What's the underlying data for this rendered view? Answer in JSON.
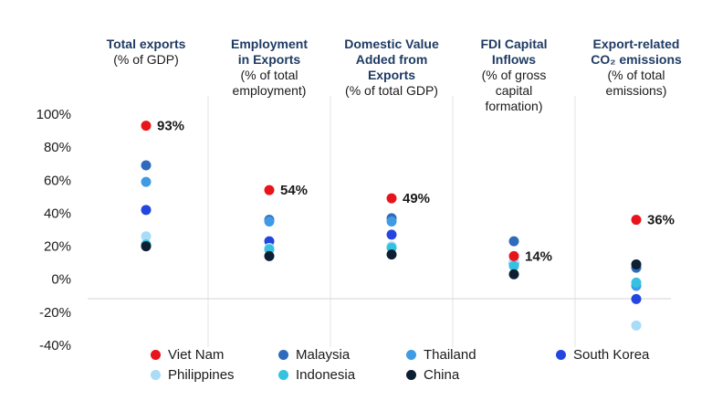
{
  "chart_data": {
    "type": "scatter",
    "categories": [
      {
        "title": "Total exports",
        "subtitle": "(% of GDP)"
      },
      {
        "title": "Employment in Exports",
        "subtitle": "(% of total employment)"
      },
      {
        "title": "Domestic Value Added from Exports",
        "subtitle": "(% of total GDP)"
      },
      {
        "title": "FDI Capital Inflows",
        "subtitle": "(% of gross capital formation)"
      },
      {
        "title": "Export-related CO₂ emissions",
        "subtitle": "(% of total emissions)"
      }
    ],
    "y_ticks": [
      "100%",
      "80%",
      "60%",
      "40%",
      "20%",
      "0%",
      "-20%",
      "-40%"
    ],
    "ylim": [
      -40,
      100
    ],
    "series": [
      {
        "name": "Viet Nam",
        "color": "#e8141b",
        "values": [
          93,
          54,
          49,
          14,
          36
        ],
        "labels": [
          "93%",
          "54%",
          "49%",
          "14%",
          "36%"
        ]
      },
      {
        "name": "Malaysia",
        "color": "#2f6bbd",
        "values": [
          69,
          36,
          37,
          23,
          7
        ]
      },
      {
        "name": "Thailand",
        "color": "#3f9be3",
        "values": [
          59,
          35,
          35,
          9,
          -4
        ]
      },
      {
        "name": "South Korea",
        "color": "#2446e0",
        "values": [
          42,
          23,
          27,
          10,
          -12
        ]
      },
      {
        "name": "Philippines",
        "color": "#a8dcf7",
        "values": [
          26,
          19,
          20,
          11,
          -28
        ]
      },
      {
        "name": "Indonesia",
        "color": "#35c2e0",
        "values": [
          21,
          18,
          19,
          8,
          -2
        ]
      },
      {
        "name": "China",
        "color": "#0d1f33",
        "values": [
          20,
          14,
          15,
          3,
          9
        ]
      }
    ]
  }
}
